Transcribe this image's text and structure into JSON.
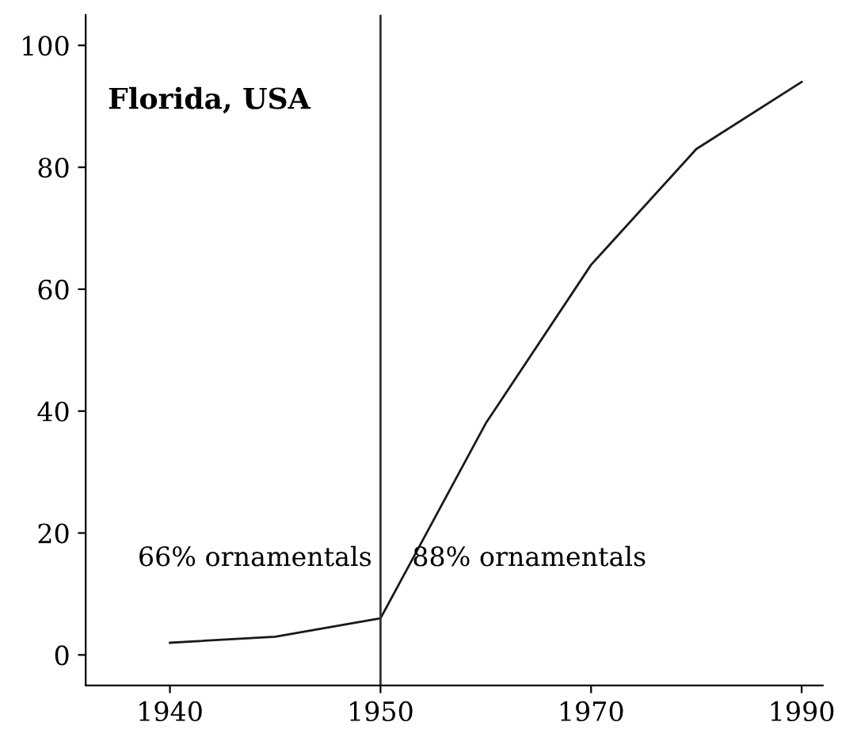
{
  "chart_data": {
    "type": "line",
    "title": "Florida, USA",
    "categories": [
      "1940",
      null,
      "1950",
      null,
      "1970",
      null,
      "1990"
    ],
    "values": [
      2,
      3,
      6,
      38,
      64,
      83,
      94
    ],
    "color": "#1a1a1a",
    "marker": "none",
    "line_style": "solid",
    "grid": false,
    "legend": false,
    "ylim": [
      -5,
      105
    ],
    "yticks": [
      0,
      20,
      40,
      60,
      80,
      100
    ],
    "ref_lines": [
      {
        "axis": "x",
        "value": "1950",
        "color": "#333333"
      }
    ],
    "annotations": [
      "66% ornamentals",
      "88% ornamentals"
    ]
  }
}
